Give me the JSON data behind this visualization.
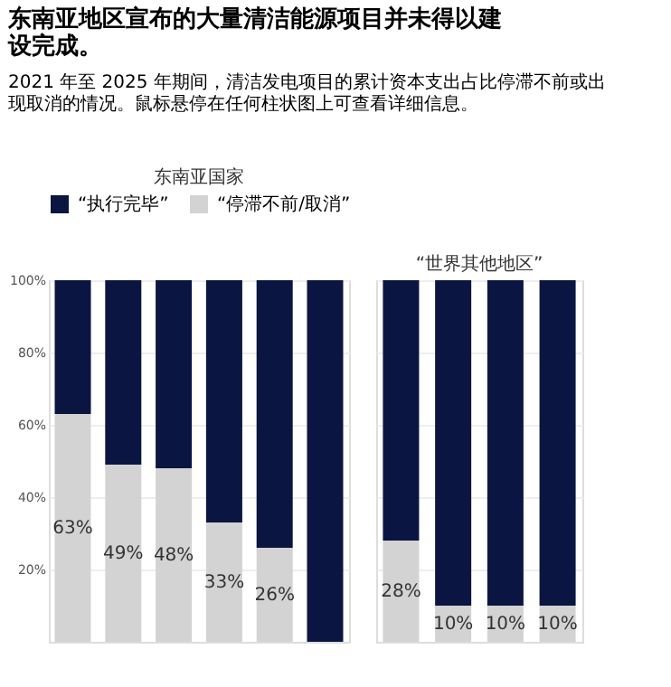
{
  "chart_data": [
    {
      "type": "bar",
      "title": "东南亚地区宣布的大量清洁能源项目并未得以建设完成。",
      "subtitle": "2021 年至 2025 年期间，清洁发电项目的累计资本支出占比停滞不前或出现取消的情况。鼠标悬停在任何柱状图上可查看详细信息。",
      "xlabel": "东南亚国家",
      "stacked": true,
      "legend": "top",
      "grid": "y",
      "tick_labels": "y",
      "categories": [
        null,
        null,
        null,
        null,
        null,
        null
      ],
      "series": [
        {
          "name": "“停滞不前/取消”",
          "color": "#d3d3d3",
          "values": [
            63,
            49,
            48,
            33,
            26,
            0
          ],
          "value_labels": [
            "63%",
            "49%",
            "48%",
            "33%",
            "26%",
            null
          ]
        },
        {
          "name": "“执行完毕”",
          "color": "#0b1541",
          "values": [
            37,
            51,
            52,
            67,
            74,
            100
          ]
        }
      ],
      "ylim": [
        0,
        100
      ],
      "yticks": [
        {
          "value": 20,
          "label": "20%"
        },
        {
          "value": 40,
          "label": "40%"
        },
        {
          "value": 60,
          "label": "60%"
        },
        {
          "value": 80,
          "label": "80%"
        },
        {
          "value": 100,
          "label": "100%"
        }
      ]
    },
    {
      "type": "bar",
      "xlabel": "“世界其他地区”",
      "stacked": true,
      "grid": "y",
      "tick_labels": false,
      "categories": [
        null,
        null,
        null,
        null
      ],
      "series": [
        {
          "color": "#d3d3d3",
          "values": [
            28,
            10,
            10,
            10
          ],
          "value_labels": [
            "28%",
            "10%",
            "10%",
            "10%"
          ]
        },
        {
          "color": "#0b1541",
          "values": [
            72,
            90,
            90,
            90
          ]
        }
      ],
      "ylim": [
        0,
        100
      ],
      "yticks": [
        {
          "value": 20,
          "label": null
        },
        {
          "value": 40,
          "label": null
        },
        {
          "value": 60,
          "label": null
        },
        {
          "value": 80,
          "label": null
        },
        {
          "value": 100,
          "label": null
        }
      ]
    }
  ]
}
